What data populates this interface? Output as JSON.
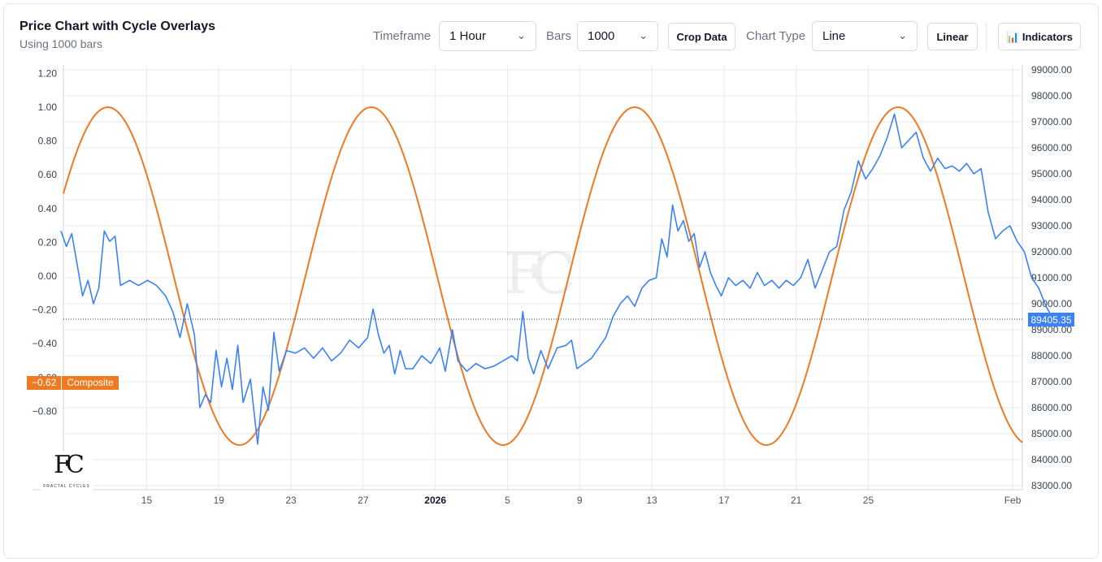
{
  "header": {
    "title": "Price Chart with Cycle Overlays",
    "subtitle": "Using 1000 bars"
  },
  "toolbar": {
    "timeframe_label": "Timeframe",
    "timeframe_value": "1 Hour",
    "bars_label": "Bars",
    "bars_value": "1000",
    "crop_label": "Crop Data",
    "chart_type_label": "Chart Type",
    "chart_type_value": "Line",
    "scale_label": "Linear",
    "indicators_label": "📊 Indicators"
  },
  "composite_tag": {
    "value": "−0.62",
    "name": "Composite"
  },
  "price_tag": {
    "value": "89405.35"
  },
  "watermark": {
    "text": "FC",
    "subtext": "FRACTAL CYCLES"
  },
  "colors": {
    "price": "#3b82f6",
    "cycle": "#ee7a22",
    "grid": "#e8eaed"
  },
  "chart_data": {
    "type": "line",
    "x_tick_labels": [
      "15",
      "19",
      "23",
      "27",
      "2026",
      "5",
      "9",
      "13",
      "17",
      "21",
      "25",
      "Feb"
    ],
    "left_axis": {
      "ticks": [
        "1.20",
        "1.00",
        "0.80",
        "0.60",
        "0.40",
        "0.20",
        "0.00",
        "−0.20",
        "−0.40",
        "−0.60",
        "−0.80"
      ],
      "range": [
        -1.0,
        1.2
      ]
    },
    "right_axis": {
      "ticks": [
        "99000.00",
        "98000.00",
        "97000.00",
        "96000.00",
        "95000.00",
        "94000.00",
        "93000.00",
        "92000.00",
        "91000.00",
        "90000.00",
        "89000.00",
        "88000.00",
        "87000.00",
        "86000.00",
        "85000.00",
        "84000.00",
        "83000.00"
      ],
      "range": [
        83000,
        99000
      ]
    },
    "series": [
      {
        "axis": "right",
        "last_value": 89405.35,
        "points": [
          [
            0,
            92800
          ],
          [
            0.3,
            92200
          ],
          [
            0.6,
            92700
          ],
          [
            0.9,
            91500
          ],
          [
            1.2,
            90300
          ],
          [
            1.5,
            90900
          ],
          [
            1.8,
            90000
          ],
          [
            2.1,
            90600
          ],
          [
            2.4,
            92800
          ],
          [
            2.7,
            92400
          ],
          [
            3.0,
            92600
          ],
          [
            3.3,
            90700
          ],
          [
            3.8,
            90900
          ],
          [
            4.3,
            90700
          ],
          [
            4.8,
            90900
          ],
          [
            5.3,
            90700
          ],
          [
            5.8,
            90300
          ],
          [
            6.2,
            89700
          ],
          [
            6.6,
            88700
          ],
          [
            7.0,
            90000
          ],
          [
            7.4,
            88800
          ],
          [
            7.7,
            86000
          ],
          [
            8.0,
            86500
          ],
          [
            8.3,
            86200
          ],
          [
            8.6,
            88200
          ],
          [
            8.9,
            86800
          ],
          [
            9.2,
            87900
          ],
          [
            9.5,
            86700
          ],
          [
            9.8,
            88400
          ],
          [
            10.1,
            86200
          ],
          [
            10.5,
            87100
          ],
          [
            10.9,
            84600
          ],
          [
            11.2,
            86800
          ],
          [
            11.5,
            85900
          ],
          [
            11.8,
            88900
          ],
          [
            12.1,
            87400
          ],
          [
            12.5,
            88200
          ],
          [
            13.0,
            88100
          ],
          [
            13.5,
            88300
          ],
          [
            14.0,
            87900
          ],
          [
            14.5,
            88300
          ],
          [
            15.0,
            87800
          ],
          [
            15.5,
            88100
          ],
          [
            16.0,
            88600
          ],
          [
            16.5,
            88300
          ],
          [
            17.0,
            88700
          ],
          [
            17.3,
            89800
          ],
          [
            17.6,
            88800
          ],
          [
            17.9,
            88100
          ],
          [
            18.2,
            88400
          ],
          [
            18.5,
            87300
          ],
          [
            18.8,
            88200
          ],
          [
            19.1,
            87500
          ],
          [
            19.5,
            87500
          ],
          [
            20.0,
            88000
          ],
          [
            20.5,
            87700
          ],
          [
            21.0,
            88300
          ],
          [
            21.3,
            87400
          ],
          [
            21.7,
            89000
          ],
          [
            22.0,
            87800
          ],
          [
            22.5,
            87400
          ],
          [
            23.0,
            87700
          ],
          [
            23.5,
            87500
          ],
          [
            24.0,
            87600
          ],
          [
            24.5,
            87800
          ],
          [
            25.0,
            88000
          ],
          [
            25.3,
            87800
          ],
          [
            25.6,
            89700
          ],
          [
            25.9,
            87900
          ],
          [
            26.2,
            87300
          ],
          [
            26.6,
            88200
          ],
          [
            27.0,
            87500
          ],
          [
            27.5,
            88300
          ],
          [
            28.0,
            88400
          ],
          [
            28.3,
            88600
          ],
          [
            28.6,
            87500
          ],
          [
            29.0,
            87700
          ],
          [
            29.4,
            87900
          ],
          [
            29.8,
            88300
          ],
          [
            30.2,
            88700
          ],
          [
            30.6,
            89500
          ],
          [
            31.0,
            90000
          ],
          [
            31.4,
            90300
          ],
          [
            31.8,
            89900
          ],
          [
            32.2,
            90600
          ],
          [
            32.6,
            90900
          ],
          [
            33.0,
            91000
          ],
          [
            33.3,
            92500
          ],
          [
            33.6,
            91800
          ],
          [
            33.9,
            93800
          ],
          [
            34.2,
            92800
          ],
          [
            34.5,
            93200
          ],
          [
            34.8,
            92400
          ],
          [
            35.1,
            92700
          ],
          [
            35.4,
            91400
          ],
          [
            35.7,
            92000
          ],
          [
            36.0,
            91200
          ],
          [
            36.3,
            90700
          ],
          [
            36.6,
            90300
          ],
          [
            37.0,
            91000
          ],
          [
            37.4,
            90700
          ],
          [
            37.8,
            90900
          ],
          [
            38.2,
            90600
          ],
          [
            38.6,
            91200
          ],
          [
            39.0,
            90700
          ],
          [
            39.4,
            90900
          ],
          [
            39.8,
            90600
          ],
          [
            40.2,
            90900
          ],
          [
            40.6,
            90700
          ],
          [
            41.0,
            91000
          ],
          [
            41.4,
            91700
          ],
          [
            41.8,
            90600
          ],
          [
            42.2,
            91300
          ],
          [
            42.6,
            92000
          ],
          [
            43.0,
            92200
          ],
          [
            43.4,
            93600
          ],
          [
            43.8,
            94300
          ],
          [
            44.2,
            95500
          ],
          [
            44.6,
            94800
          ],
          [
            45.0,
            95200
          ],
          [
            45.4,
            95700
          ],
          [
            45.8,
            96400
          ],
          [
            46.2,
            97300
          ],
          [
            46.6,
            96000
          ],
          [
            47.0,
            96300
          ],
          [
            47.4,
            96600
          ],
          [
            47.8,
            95600
          ],
          [
            48.2,
            95100
          ],
          [
            48.6,
            95600
          ],
          [
            49.0,
            95200
          ],
          [
            49.4,
            95300
          ],
          [
            49.8,
            95100
          ],
          [
            50.2,
            95400
          ],
          [
            50.6,
            95000
          ],
          [
            51.0,
            95200
          ],
          [
            51.4,
            93500
          ],
          [
            51.8,
            92500
          ],
          [
            52.2,
            92800
          ],
          [
            52.6,
            93000
          ],
          [
            53.0,
            92400
          ],
          [
            53.4,
            92000
          ],
          [
            53.8,
            91000
          ],
          [
            54.2,
            90600
          ],
          [
            54.6,
            89900
          ],
          [
            55.0,
            89405.35
          ]
        ]
      },
      {
        "axis": "left",
        "name": "Composite",
        "last_value": -0.62,
        "cycle": {
          "period_days": 14.6,
          "amplitude": 1.0,
          "peak_day": 2.6
        }
      }
    ]
  }
}
